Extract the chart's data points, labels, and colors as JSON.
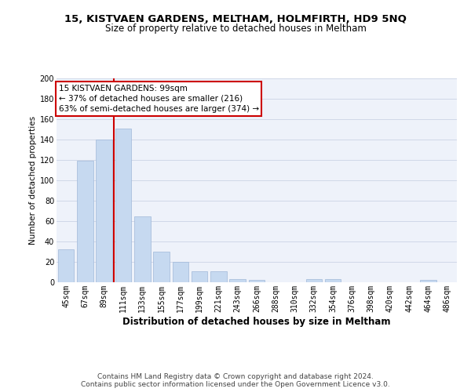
{
  "title1": "15, KISTVAEN GARDENS, MELTHAM, HOLMFIRTH, HD9 5NQ",
  "title2": "Size of property relative to detached houses in Meltham",
  "xlabel": "Distribution of detached houses by size in Meltham",
  "ylabel": "Number of detached properties",
  "categories": [
    "45sqm",
    "67sqm",
    "89sqm",
    "111sqm",
    "133sqm",
    "155sqm",
    "177sqm",
    "199sqm",
    "221sqm",
    "243sqm",
    "266sqm",
    "288sqm",
    "310sqm",
    "332sqm",
    "354sqm",
    "376sqm",
    "398sqm",
    "420sqm",
    "442sqm",
    "464sqm",
    "486sqm"
  ],
  "values": [
    32,
    119,
    140,
    151,
    65,
    30,
    20,
    11,
    11,
    3,
    2,
    0,
    0,
    3,
    3,
    0,
    0,
    0,
    0,
    2,
    0
  ],
  "bar_color": "#c6d9f0",
  "bar_edge_color": "#a0b8d8",
  "vline_color": "#cc0000",
  "vline_x_index": 2,
  "annotation_text": "15 KISTVAEN GARDENS: 99sqm\n← 37% of detached houses are smaller (216)\n63% of semi-detached houses are larger (374) →",
  "annotation_box_color": "#cc0000",
  "ylim": [
    0,
    200
  ],
  "yticks": [
    0,
    20,
    40,
    60,
    80,
    100,
    120,
    140,
    160,
    180,
    200
  ],
  "grid_color": "#d0d8e8",
  "bg_color": "#eef2fa",
  "footer1": "Contains HM Land Registry data © Crown copyright and database right 2024.",
  "footer2": "Contains public sector information licensed under the Open Government Licence v3.0.",
  "title1_fontsize": 9.5,
  "title2_fontsize": 8.5,
  "xlabel_fontsize": 8.5,
  "ylabel_fontsize": 7.5,
  "tick_fontsize": 7,
  "annotation_fontsize": 7.5,
  "footer_fontsize": 6.5
}
